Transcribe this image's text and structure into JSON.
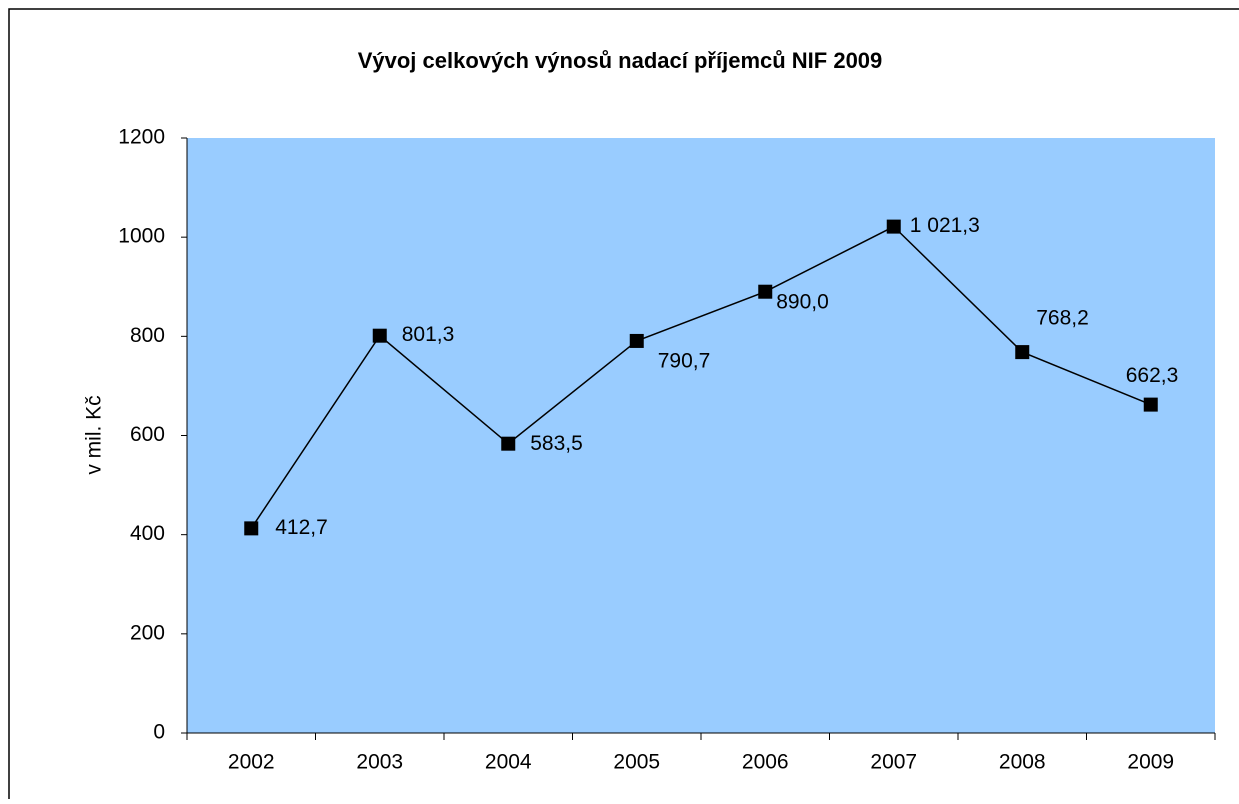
{
  "chart_data": {
    "type": "line",
    "title": "Vývoj celkových výnosů nadací příjemců NIF 2009",
    "y_label": "v mil. Kč",
    "categories": [
      "2002",
      "2003",
      "2004",
      "2005",
      "2006",
      "2007",
      "2008",
      "2009"
    ],
    "values": [
      412.7,
      801.3,
      583.5,
      790.7,
      890.0,
      1021.3,
      768.2,
      662.3
    ],
    "value_labels": [
      "412,7",
      "801,3",
      "583,5",
      "790,7",
      "890,0",
      "1 021,3",
      "768,2",
      "662,3"
    ],
    "color": "#000000",
    "plot_background": "#99ccff",
    "ylim": [
      0,
      1200
    ],
    "yticks": [
      0,
      200,
      400,
      600,
      800,
      1000,
      1200
    ]
  }
}
